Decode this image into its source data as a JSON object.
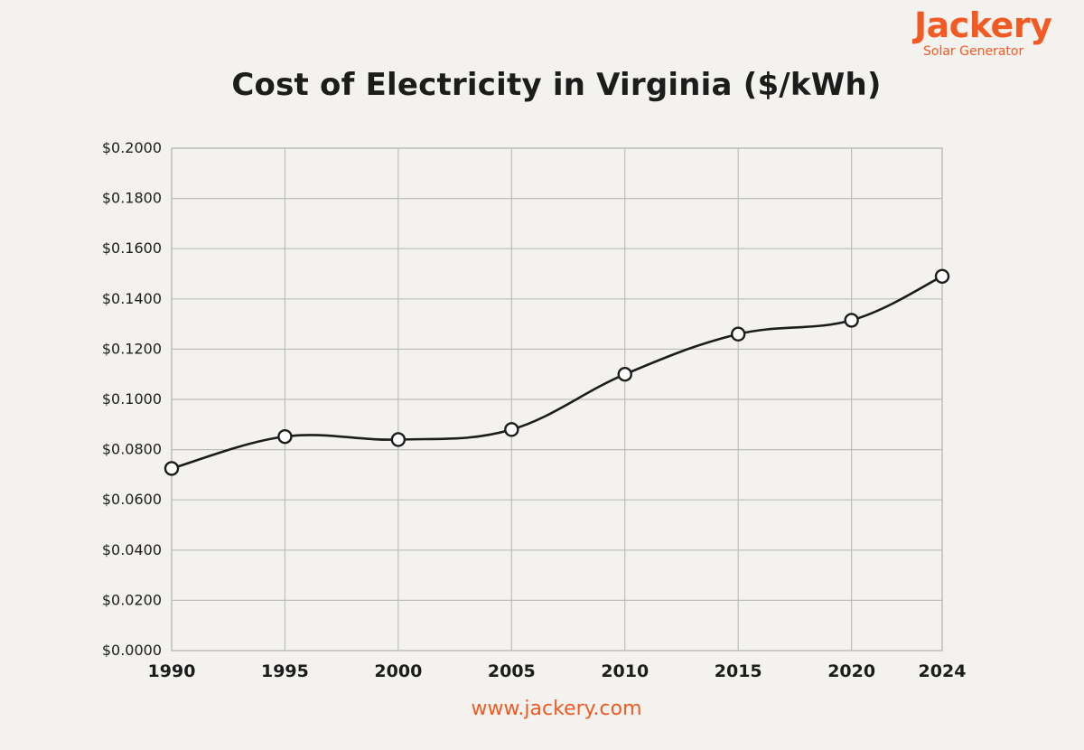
{
  "brand": {
    "name": "Jackery",
    "tagline": "Solar Generator",
    "color": "#f25a24"
  },
  "footer": {
    "website": "www.jackery.com"
  },
  "chart_data": {
    "type": "line",
    "title": "Cost of Electricity in Virginia ($/kWh)",
    "xlabel": "",
    "ylabel": "",
    "x": [
      1990,
      1995,
      2000,
      2005,
      2010,
      2015,
      2020,
      2024
    ],
    "x_tick_labels": [
      "1990",
      "1995",
      "2000",
      "2005",
      "2010",
      "2015",
      "2020",
      "2024"
    ],
    "series": [
      {
        "values": [
          0.0725,
          0.0852,
          0.084,
          0.088,
          0.11,
          0.126,
          0.1315,
          0.149
        ]
      }
    ],
    "ylim": [
      0,
      0.2
    ],
    "y_ticks": [
      0.0,
      0.02,
      0.04,
      0.06,
      0.08,
      0.1,
      0.12,
      0.14,
      0.16,
      0.18,
      0.2
    ],
    "y_tick_labels": [
      "$0.0000",
      "$0.0200",
      "$0.0400",
      "$0.0600",
      "$0.0800",
      "$0.1000",
      "$0.1200",
      "$0.1400",
      "$0.1600",
      "$0.1800",
      "$0.2000"
    ],
    "grid": true,
    "legend": "none",
    "line_color": "#1c1c1c",
    "marker": "hollow-circle"
  }
}
